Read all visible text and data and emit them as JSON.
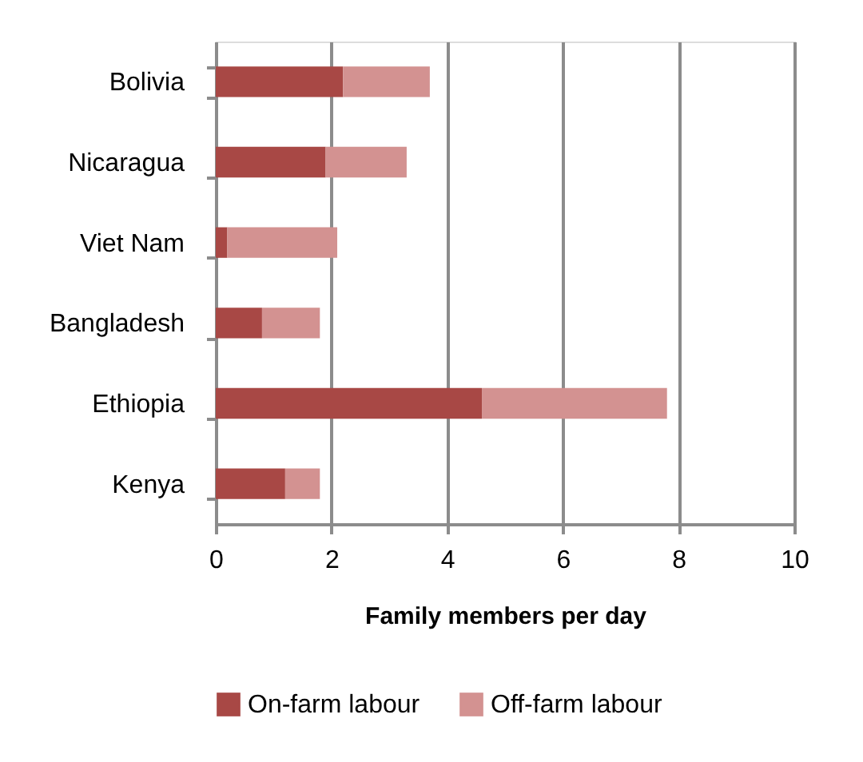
{
  "chart_data": {
    "type": "bar",
    "orientation": "horizontal",
    "stacked": true,
    "xlabel": "Family members per day",
    "categories": [
      "Bolivia",
      "Nicaragua",
      "Viet Nam",
      "Bangladesh",
      "Ethiopia",
      "Kenya"
    ],
    "series": [
      {
        "name": "On-farm labour",
        "color": "#a84845",
        "values": [
          2.2,
          1.9,
          0.2,
          0.8,
          4.6,
          1.2
        ]
      },
      {
        "name": "Off-farm labour",
        "color": "#d39291",
        "values": [
          1.5,
          1.4,
          1.9,
          1.0,
          3.2,
          0.6
        ]
      }
    ],
    "xlim": [
      0,
      10
    ],
    "xticks": [
      0,
      2,
      4,
      6,
      8,
      10
    ],
    "grid": "x",
    "legend": "bottom"
  }
}
